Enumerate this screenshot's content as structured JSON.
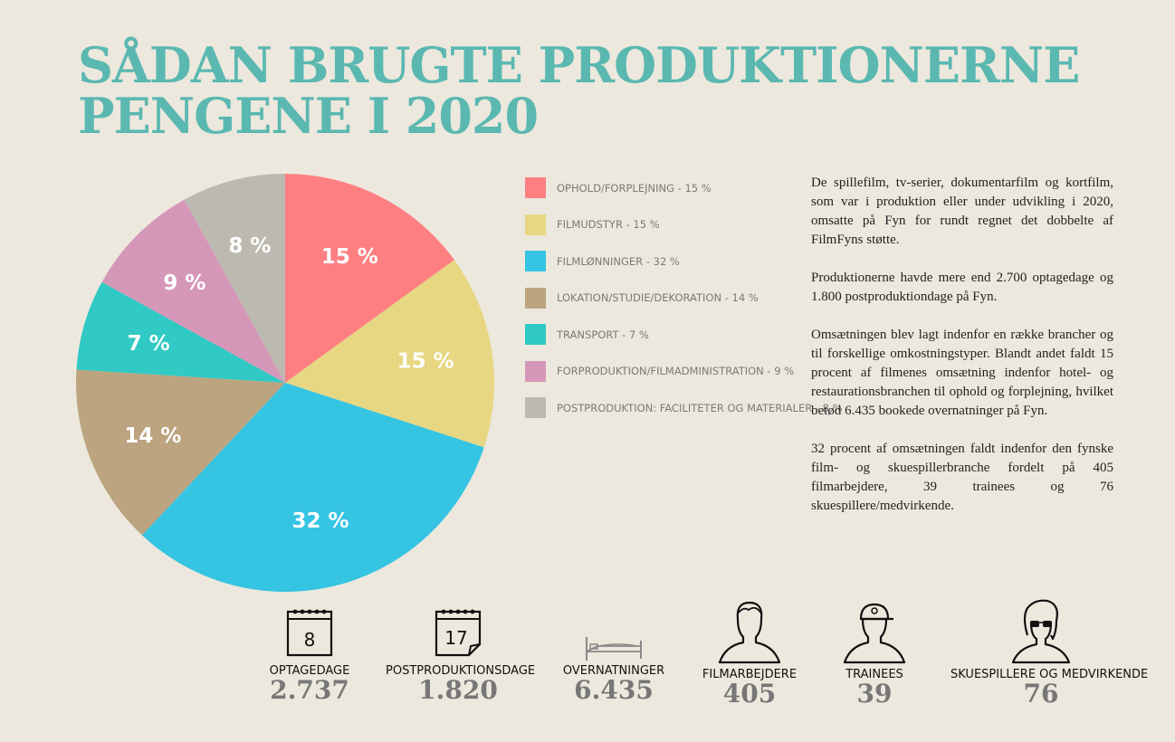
{
  "title": {
    "line1": "SÅDAN BRUGTE PRODUKTIONERNE",
    "line2": "PENGENE I 2020"
  },
  "chart_data": {
    "type": "pie",
    "slices": [
      {
        "label": "OPHOLD/FORPLEJNING - 15 %",
        "value": 15,
        "display": "15 %",
        "color": "#fe7f82"
      },
      {
        "label": "FILMUDSTYR - 15 %",
        "value": 15,
        "display": "15 %",
        "color": "#e7d783"
      },
      {
        "label": "FILMLØNNINGER - 32 %",
        "value": 32,
        "display": "32 %",
        "color": "#35c4e2"
      },
      {
        "label": "LOKATION/STUDIE/DEKORATION - 14 %",
        "value": 14,
        "display": "14 %",
        "color": "#bca480"
      },
      {
        "label": "TRANSPORT - 7 %",
        "value": 7,
        "display": "7 %",
        "color": "#30c9c4"
      },
      {
        "label": "FORPRODUKTION/FILMADMINISTRATION - 9 %",
        "value": 9,
        "display": "9 %",
        "color": "#d597b8"
      },
      {
        "label": "POSTPRODUKTION: FACILITETER OG MATERIALER - 8 %",
        "value": 8,
        "display": "8 %",
        "color": "#bcb9b0"
      }
    ]
  },
  "paragraphs": [
    "De spillefilm, tv-serier, dokumentarfilm og kortfilm, som var i produktion eller under udvikling i 2020, omsatte på Fyn for rundt regnet det dobbelte af FilmFyns støtte.",
    "Produktionerne havde mere end 2.700 optagedage og 1.800 postproduktiondage på Fyn.",
    "Omsætningen blev lagt indenfor en række brancher og til forskellige omkostningstyper. Blandt andet faldt 15 procent af filmenes omsætning indenfor hotel- og restaurationsbranchen til ophold og forplejning, hvilket betød 6.435 bookede overnatninger på Fyn.",
    "32 procent af omsætningen faldt indenfor den fynske film- og skuespillerbranche fordelt på 405 filmarbejdere, 39 trainees og 76 skuespillere/medvirkende."
  ],
  "stats": [
    {
      "label": "OPTAGEDAGE",
      "value": "2.737",
      "icon": "calendar-icon",
      "icon_text": "8"
    },
    {
      "label": "POSTPRODUKTIONSDAGE",
      "value": "1.820",
      "icon": "calendar-icon",
      "icon_text": "17"
    },
    {
      "label": "OVERNATNINGER",
      "value": "6.435",
      "icon": "bed-icon"
    },
    {
      "label": "FILMARBEJDERE",
      "value": "405",
      "icon": "person-icon"
    },
    {
      "label": "TRAINEES",
      "value": "39",
      "icon": "person-cap-icon"
    },
    {
      "label": "SKUESPILLERE OG MEDVIRKENDE",
      "value": "76",
      "icon": "person-glasses-icon"
    }
  ]
}
